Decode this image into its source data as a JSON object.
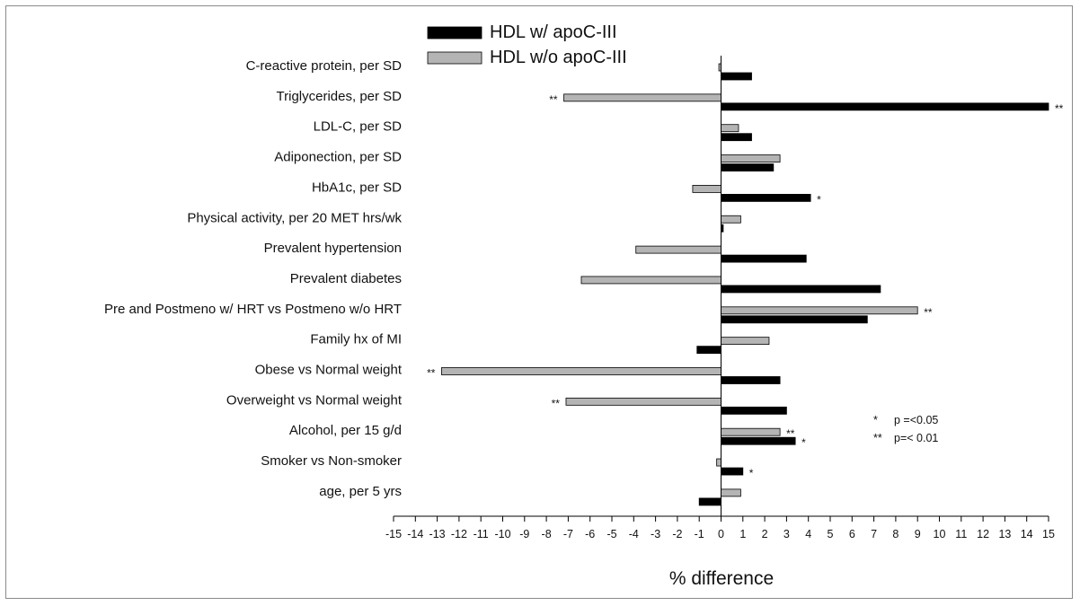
{
  "chart_data": {
    "type": "bar",
    "orientation": "horizontal",
    "title": "",
    "xlabel": "% difference",
    "ylabel": "",
    "xlim": [
      -15,
      15
    ],
    "x_ticks": [
      "-15",
      "-14",
      "-13",
      "-12",
      "-11",
      "-10",
      "-9",
      "-8",
      "-7",
      "-6",
      "-5",
      "-4",
      "-3",
      "-2",
      "-1",
      "0",
      "1",
      "2",
      "3",
      "4",
      "5",
      "6",
      "7",
      "8",
      "9",
      "10",
      "11",
      "12",
      "13",
      "14",
      "15"
    ],
    "categories": [
      "C-reactive protein, per SD",
      "Triglycerides, per SD",
      "LDL-C, per SD",
      "Adiponection, per SD",
      "HbA1c, per SD",
      "Physical activity, per 20 MET hrs/wk",
      "Prevalent hypertension",
      "Prevalent diabetes",
      "Pre and Postmeno w/ HRT vs Postmeno w/o HRT",
      "Family hx of MI",
      "Obese vs Normal weight",
      "Overweight vs Normal weight",
      "Alcohol, per 15 g/d",
      "Smoker vs Non-smoker",
      "age, per 5 yrs"
    ],
    "series": [
      {
        "name": "HDL w/ apoC-III",
        "color": "#000000",
        "values": [
          1.4,
          15.0,
          1.4,
          2.4,
          4.1,
          0.1,
          3.9,
          7.3,
          6.7,
          -1.1,
          2.7,
          3.0,
          3.4,
          1.0,
          -1.0
        ],
        "annotations": [
          "",
          "**",
          "",
          "",
          "*",
          "",
          "",
          "",
          "",
          "",
          "",
          "",
          "*",
          "*",
          ""
        ]
      },
      {
        "name": "HDL w/o apoC-III",
        "color": "#b4b4b4",
        "values": [
          -0.1,
          -7.2,
          0.8,
          2.7,
          -1.3,
          0.9,
          -3.9,
          -6.4,
          9.0,
          2.2,
          -12.8,
          -7.1,
          2.7,
          -0.2,
          0.9
        ],
        "annotations": [
          "",
          "**",
          "",
          "",
          "",
          "",
          "",
          "",
          "**",
          "",
          "**",
          "**",
          "**",
          "",
          ""
        ]
      }
    ],
    "legend": {
      "position": "top-center"
    },
    "significance_notes": [
      {
        "symbol": "*",
        "text": "p =<0.05"
      },
      {
        "symbol": "**",
        "text": "p=< 0.01"
      }
    ],
    "grid": false
  }
}
